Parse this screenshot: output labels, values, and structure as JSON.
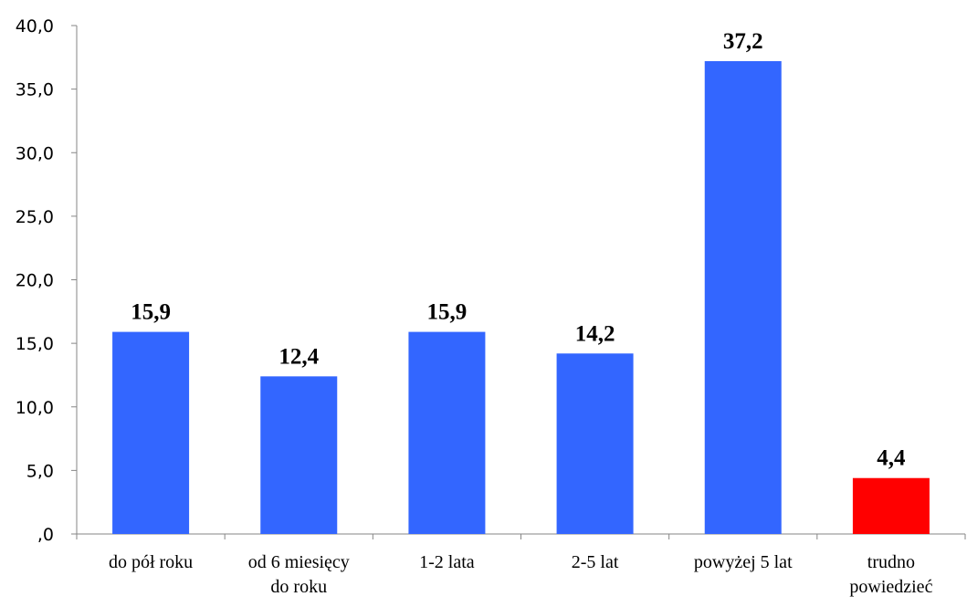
{
  "chart_data": {
    "type": "bar",
    "categories": [
      [
        "do pół roku"
      ],
      [
        "od 6 miesięcy",
        "do roku"
      ],
      [
        "1-2 lata"
      ],
      [
        "2-5 lat"
      ],
      [
        "powyżej 5 lat"
      ],
      [
        "trudno",
        "powiedzieć"
      ]
    ],
    "values": [
      15.9,
      12.4,
      15.9,
      14.2,
      37.2,
      4.4
    ],
    "data_labels": [
      "15,9",
      "12,4",
      "15,9",
      "14,2",
      "37,2",
      "4,4"
    ],
    "bar_colors": [
      "#3366ff",
      "#3366ff",
      "#3366ff",
      "#3366ff",
      "#3366ff",
      "#ff0000"
    ],
    "ylim": [
      0,
      40
    ],
    "yticks": [
      0,
      5,
      10,
      15,
      20,
      25,
      30,
      35,
      40
    ],
    "ytick_labels": [
      ",0",
      "5,0",
      "10,0",
      "15,0",
      "20,0",
      "25,0",
      "30,0",
      "35,0",
      "40,0"
    ],
    "title": "",
    "xlabel": "",
    "ylabel": "",
    "grid": false,
    "legend": "none"
  }
}
